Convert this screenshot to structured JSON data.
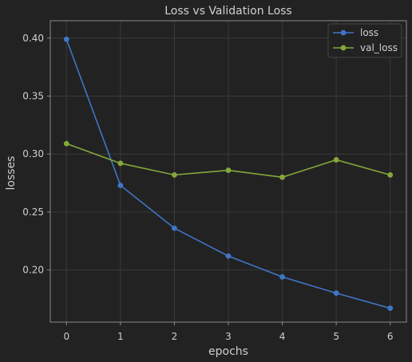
{
  "chart_data": {
    "type": "line",
    "title": "Loss vs Validation Loss",
    "xlabel": "epochs",
    "ylabel": "losses",
    "x": [
      0,
      1,
      2,
      3,
      4,
      5,
      6
    ],
    "xlim": [
      -0.3,
      6.3
    ],
    "ylim": [
      0.155,
      0.415
    ],
    "xticks": [
      "0",
      "1",
      "2",
      "3",
      "4",
      "5",
      "6"
    ],
    "yticks": [
      "0.20",
      "0.25",
      "0.30",
      "0.35",
      "0.40"
    ],
    "ytick_values": [
      0.2,
      0.25,
      0.3,
      0.35,
      0.4
    ],
    "grid": true,
    "legend_position": "top-right",
    "series": [
      {
        "name": "loss",
        "color": "#3f75c8",
        "values": [
          0.399,
          0.273,
          0.236,
          0.212,
          0.194,
          0.18,
          0.167
        ]
      },
      {
        "name": "val_loss",
        "color": "#84a83a",
        "values": [
          0.309,
          0.292,
          0.282,
          0.286,
          0.28,
          0.295,
          0.282
        ]
      }
    ],
    "colors": {
      "background": "#222222",
      "frame": "#8a8a8a",
      "grid": "#3a3a3a"
    }
  }
}
